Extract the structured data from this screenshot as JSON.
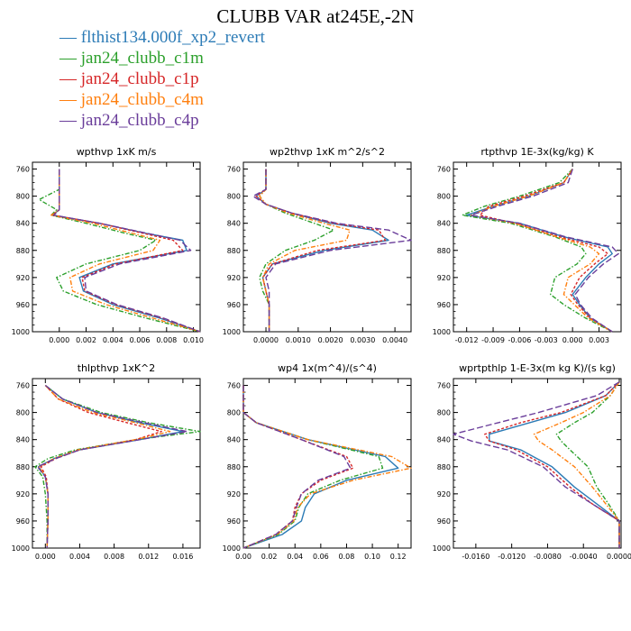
{
  "title": "CLUBB VAR at245E,-2N",
  "legend": [
    {
      "label": "flthist134.000f_xp2_revert",
      "color": "#2c7bb6",
      "dash": "none"
    },
    {
      "label": "jan24_clubb_c1m",
      "color": "#2ca02c",
      "dash": "5,2,1.5,2"
    },
    {
      "label": "jan24_clubb_c1p",
      "color": "#d62728",
      "dash": "3,2"
    },
    {
      "label": "jan24_clubb_c4m",
      "color": "#ff7f0e",
      "dash": "5,2,1.5,2"
    },
    {
      "label": "jan24_clubb_c4p",
      "color": "#6a3d9a",
      "dash": "7,3"
    }
  ],
  "chart_data": [
    {
      "type": "line",
      "title": "wpthvp   1xK m/s",
      "xlim": [
        -0.002,
        0.0105
      ],
      "xticks": [
        "0.000",
        "0.002",
        "0.004",
        "0.006",
        "0.008",
        "0.010"
      ],
      "xtick_values": [
        0,
        0.002,
        0.004,
        0.006,
        0.008,
        0.01
      ],
      "ylim": [
        1000,
        750
      ],
      "yticks": [
        760,
        800,
        840,
        880,
        920,
        960,
        1000
      ],
      "y": [
        760,
        790,
        805,
        820,
        828,
        840,
        855,
        865,
        880,
        900,
        920,
        940,
        960,
        980,
        1000
      ],
      "series": [
        {
          "values": [
            0.0,
            0.0,
            0.0,
            0.0,
            -0.0005,
            0.003,
            0.0065,
            0.0092,
            0.0095,
            0.004,
            0.0015,
            0.0018,
            0.004,
            0.0075,
            0.0105
          ]
        },
        {
          "values": [
            0.0,
            0.0,
            -0.0015,
            -0.0002,
            -0.0006,
            0.002,
            0.005,
            0.0072,
            0.006,
            0.002,
            -0.0002,
            0.0003,
            0.0028,
            0.0065,
            0.0105
          ]
        },
        {
          "values": [
            0.0,
            0.0,
            0.0,
            0.0,
            -0.0005,
            0.003,
            0.0063,
            0.0085,
            0.0092,
            0.0042,
            0.0017,
            0.0019,
            0.0042,
            0.0077,
            0.0105
          ]
        },
        {
          "values": [
            0.0,
            0.0,
            0.0,
            0.0,
            -0.0006,
            0.0025,
            0.0055,
            0.0075,
            0.007,
            0.003,
            0.0008,
            0.001,
            0.0035,
            0.007,
            0.0105
          ]
        },
        {
          "values": [
            0.0,
            0.0,
            0.0,
            0.0,
            -0.0004,
            0.003,
            0.0066,
            0.009,
            0.0098,
            0.0045,
            0.0019,
            0.002,
            0.0043,
            0.0078,
            0.0105
          ]
        }
      ]
    },
    {
      "type": "line",
      "title": "wp2thvp   1xK m^2/s^2",
      "xlim": [
        -0.0007,
        0.0045
      ],
      "xticks": [
        "0.0000",
        "0.0010",
        "0.0020",
        "0.0030",
        "0.0040"
      ],
      "xtick_values": [
        0,
        0.001,
        0.002,
        0.003,
        0.004
      ],
      "ylim": [
        1000,
        750
      ],
      "yticks": [
        760,
        800,
        840,
        880,
        920,
        960,
        1000
      ],
      "y": [
        760,
        790,
        800,
        812,
        825,
        840,
        850,
        865,
        880,
        900,
        920,
        940,
        960,
        980,
        1000
      ],
      "series": [
        {
          "values": [
            0.0,
            0.0,
            -0.0003,
            0.0,
            0.0008,
            0.002,
            0.0033,
            0.0038,
            0.0018,
            0.0002,
            -0.0001,
            0.0,
            0.0001,
            0.0001,
            0.0001
          ]
        },
        {
          "values": [
            0.0,
            0.0,
            -0.0002,
            0.0,
            0.0006,
            0.0015,
            0.0021,
            0.0015,
            0.0006,
            0.0,
            -0.0002,
            -0.0001,
            0.0001,
            0.0001,
            0.0001
          ]
        },
        {
          "values": [
            0.0,
            0.0,
            -0.0003,
            0.0,
            0.0008,
            0.0021,
            0.0035,
            0.0037,
            0.0016,
            0.0002,
            -0.0001,
            0.0,
            0.0001,
            0.0001,
            0.0001
          ]
        },
        {
          "values": [
            0.0,
            0.0,
            -0.0002,
            0.0,
            0.0007,
            0.0018,
            0.0026,
            0.0025,
            0.0009,
            0.0001,
            -0.0001,
            0.0,
            0.0001,
            0.0001,
            0.0001
          ]
        },
        {
          "values": [
            0.0,
            0.0,
            -0.0004,
            0.0,
            0.0008,
            0.0022,
            0.0038,
            0.0045,
            0.002,
            0.0003,
            0.0,
            0.0001,
            0.0001,
            0.0001,
            0.0001
          ]
        }
      ]
    },
    {
      "type": "line",
      "title": "rtpthvp   1E-3x(kg/kg) K",
      "xlim": [
        -0.0135,
        0.0055
      ],
      "xticks": [
        "-0.012",
        "-0.009",
        "-0.006",
        "-0.003",
        "0.000",
        "0.003"
      ],
      "xtick_values": [
        -0.012,
        -0.009,
        -0.006,
        -0.003,
        0,
        0.003
      ],
      "ylim": [
        1000,
        750
      ],
      "yticks": [
        760,
        800,
        840,
        880,
        920,
        960,
        1000
      ],
      "y": [
        760,
        780,
        800,
        815,
        828,
        840,
        860,
        875,
        885,
        900,
        920,
        945,
        960,
        980,
        1000
      ],
      "series": [
        {
          "values": [
            0.0,
            -0.001,
            -0.005,
            -0.009,
            -0.012,
            -0.006,
            -0.001,
            0.004,
            0.0045,
            0.003,
            0.0015,
            0.0,
            0.0008,
            0.002,
            0.0045
          ]
        },
        {
          "values": [
            0.0,
            -0.0015,
            -0.006,
            -0.01,
            -0.0125,
            -0.007,
            -0.002,
            0.001,
            0.0015,
            0.0005,
            -0.002,
            -0.0025,
            -0.001,
            0.0015,
            0.0045
          ]
        },
        {
          "values": [
            0.0,
            -0.001,
            -0.0055,
            -0.0095,
            -0.0105,
            -0.0065,
            -0.0015,
            0.003,
            0.004,
            0.0025,
            0.0008,
            -0.0002,
            0.0006,
            0.002,
            0.0045
          ]
        },
        {
          "values": [
            0.0,
            -0.001,
            -0.005,
            -0.009,
            -0.0115,
            -0.0065,
            -0.0018,
            0.002,
            0.003,
            0.002,
            -0.0005,
            -0.001,
            0.0002,
            0.0018,
            0.0045
          ]
        },
        {
          "values": [
            0.0,
            -0.0005,
            -0.0045,
            -0.0085,
            -0.0115,
            -0.006,
            -0.0008,
            0.0045,
            0.0052,
            0.0035,
            0.0018,
            0.0003,
            0.0009,
            0.0022,
            0.0045
          ]
        }
      ]
    },
    {
      "type": "line",
      "title": "thlpthvp   1xK^2",
      "xlim": [
        -0.0015,
        0.018
      ],
      "xticks": [
        "0.000",
        "0.004",
        "0.008",
        "0.012",
        "0.016"
      ],
      "xtick_values": [
        0,
        0.004,
        0.008,
        0.012,
        0.016
      ],
      "ylim": [
        1000,
        750
      ],
      "yticks": [
        760,
        800,
        840,
        880,
        920,
        960,
        1000
      ],
      "y": [
        760,
        780,
        800,
        815,
        828,
        840,
        855,
        868,
        880,
        895,
        920,
        960,
        1000
      ],
      "series": [
        {
          "values": [
            0.0,
            0.002,
            0.006,
            0.011,
            0.016,
            0.011,
            0.004,
            0.001,
            -0.0008,
            0.0,
            0.0003,
            0.0003,
            0.0002
          ]
        },
        {
          "values": [
            0.0,
            0.002,
            0.0065,
            0.012,
            0.018,
            0.0105,
            0.0035,
            0.0003,
            -0.0012,
            -0.0003,
            0.0,
            0.0002,
            0.0002
          ]
        },
        {
          "values": [
            0.0,
            0.0015,
            0.005,
            0.0095,
            0.0135,
            0.0105,
            0.004,
            0.0012,
            -0.0005,
            0.0001,
            0.0003,
            0.0003,
            0.0002
          ]
        },
        {
          "values": [
            0.0,
            0.0015,
            0.0055,
            0.0105,
            0.0145,
            0.0105,
            0.0038,
            0.001,
            -0.0007,
            0.0,
            0.0003,
            0.0003,
            0.0002
          ]
        },
        {
          "values": [
            0.0,
            0.002,
            0.006,
            0.0115,
            0.0165,
            0.011,
            0.004,
            0.0012,
            -0.0009,
            0.0,
            0.0003,
            0.0003,
            0.0002
          ]
        }
      ]
    },
    {
      "type": "line",
      "title": "wp4   1x(m^4)/(s^4)",
      "xlim": [
        0,
        0.13
      ],
      "xticks": [
        "0.00",
        "0.02",
        "0.04",
        "0.06",
        "0.08",
        "0.10",
        "0.12"
      ],
      "xtick_values": [
        0,
        0.02,
        0.04,
        0.06,
        0.08,
        0.1,
        0.12
      ],
      "ylim": [
        1000,
        750
      ],
      "yticks": [
        760,
        800,
        840,
        880,
        920,
        960,
        1000
      ],
      "y": [
        760,
        800,
        815,
        840,
        865,
        882,
        900,
        920,
        940,
        960,
        980,
        1000
      ],
      "series": [
        {
          "values": [
            0.0,
            0.0,
            0.01,
            0.05,
            0.11,
            0.12,
            0.08,
            0.055,
            0.048,
            0.045,
            0.03,
            0.0
          ]
        },
        {
          "values": [
            0.0,
            0.0,
            0.01,
            0.05,
            0.105,
            0.108,
            0.075,
            0.05,
            0.043,
            0.04,
            0.027,
            0.0
          ]
        },
        {
          "values": [
            0.0,
            0.0,
            0.01,
            0.045,
            0.08,
            0.085,
            0.06,
            0.045,
            0.04,
            0.038,
            0.025,
            0.0
          ]
        },
        {
          "values": [
            0.0,
            0.0,
            0.01,
            0.05,
            0.115,
            0.13,
            0.085,
            0.052,
            0.042,
            0.039,
            0.026,
            0.0
          ]
        },
        {
          "values": [
            0.0,
            0.0,
            0.01,
            0.045,
            0.078,
            0.083,
            0.058,
            0.045,
            0.041,
            0.038,
            0.025,
            0.0
          ]
        }
      ]
    },
    {
      "type": "line",
      "title": "wprtpthlp   1-E-3x(m kg K)/(s kg)",
      "xlim": [
        -0.0185,
        0.0002
      ],
      "xticks": [
        "-0.0160",
        "-0.0120",
        "-0.0080",
        "-0.0040",
        "0.0000"
      ],
      "xtick_values": [
        -0.016,
        -0.012,
        -0.008,
        -0.004,
        0
      ],
      "ylim": [
        1000,
        750
      ],
      "yticks": [
        760,
        800,
        840,
        880,
        920,
        960,
        1000
      ],
      "y": [
        755,
        775,
        800,
        815,
        832,
        842,
        855,
        880,
        910,
        935,
        960,
        980,
        1000
      ],
      "series": [
        {
          "values": [
            0.0,
            -0.0015,
            -0.006,
            -0.01,
            -0.0145,
            -0.0145,
            -0.011,
            -0.0075,
            -0.005,
            -0.0025,
            0.0,
            0.0,
            0.0
          ]
        },
        {
          "values": [
            0.0,
            -0.001,
            -0.003,
            -0.005,
            -0.007,
            -0.0065,
            -0.0055,
            -0.0035,
            -0.0025,
            -0.0012,
            0.0,
            0.0,
            0.0
          ]
        },
        {
          "values": [
            0.0,
            -0.0015,
            -0.0065,
            -0.011,
            -0.015,
            -0.0145,
            -0.0115,
            -0.008,
            -0.0055,
            -0.003,
            0.0,
            0.0,
            0.0
          ]
        },
        {
          "values": [
            0.0,
            -0.001,
            -0.004,
            -0.0065,
            -0.0095,
            -0.009,
            -0.0075,
            -0.005,
            -0.003,
            -0.0015,
            0.0,
            0.0,
            0.0
          ]
        },
        {
          "values": [
            0.0,
            -0.0025,
            -0.009,
            -0.0135,
            -0.0185,
            -0.0165,
            -0.0125,
            -0.0085,
            -0.006,
            -0.003,
            0.0,
            0.0,
            0.0
          ]
        }
      ]
    }
  ]
}
